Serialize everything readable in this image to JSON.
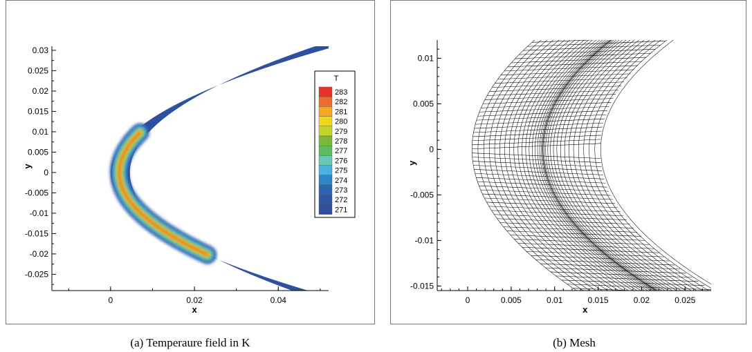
{
  "chart_data": [
    {
      "type": "heatmap",
      "title": "",
      "xlabel": "x",
      "ylabel": "y",
      "xlim": [
        -0.014,
        0.052
      ],
      "ylim": [
        -0.029,
        0.031
      ],
      "x_ticks": [
        "0",
        "0.02",
        "0.04"
      ],
      "x_tick_values": [
        0,
        0.02,
        0.04
      ],
      "y_ticks": [
        "0.03",
        "0.025",
        "0.02",
        "0.015",
        "0.01",
        "0.005",
        "0",
        "-0.005",
        "-0.01",
        "-0.015",
        "-0.02",
        "-0.025"
      ],
      "y_tick_values": [
        0.03,
        0.025,
        0.02,
        0.015,
        0.01,
        0.005,
        0,
        -0.005,
        -0.01,
        -0.015,
        -0.02,
        -0.025
      ],
      "legend": {
        "title": "T",
        "placement": "right",
        "levels": [
          283,
          282,
          281,
          280,
          279,
          278,
          277,
          276,
          275,
          274,
          273,
          272,
          271
        ],
        "labels": [
          "283",
          "282",
          "281",
          "280",
          "279",
          "278",
          "277",
          "276",
          "275",
          "274",
          "273",
          "272",
          "271"
        ],
        "colors": [
          "#e6332a",
          "#ed6b2c",
          "#f5a623",
          "#f2d61c",
          "#c4d32a",
          "#7ab83a",
          "#5dbb63",
          "#69c7b5",
          "#49b3de",
          "#2f86c7",
          "#2f64b1",
          "#2f55a5",
          "#2e4f9f"
        ]
      },
      "min_value": 271,
      "max_value": 283
    },
    {
      "type": "scatter",
      "title": "",
      "xlabel": "x",
      "ylabel": "y",
      "xlim": [
        -0.0035,
        0.028
      ],
      "ylim": [
        -0.0155,
        0.012
      ],
      "x_ticks": [
        "0",
        "0.005",
        "0.01",
        "0.015",
        "0.02",
        "0.025"
      ],
      "x_tick_values": [
        0,
        0.005,
        0.01,
        0.015,
        0.02,
        0.025
      ],
      "y_ticks": [
        "0.01",
        "0.005",
        "0",
        "-0.005",
        "-0.01",
        "-0.015"
      ],
      "y_tick_values": [
        0.01,
        0.005,
        0,
        -0.005,
        -0.01,
        -0.015
      ],
      "grid": "structured mesh lines"
    }
  ],
  "captions": {
    "a": "(a)  Temperaure field in K",
    "b": "(b)  Mesh"
  },
  "colors": {
    "field_base": "#2e50a0",
    "mesh_line": "#000000"
  }
}
